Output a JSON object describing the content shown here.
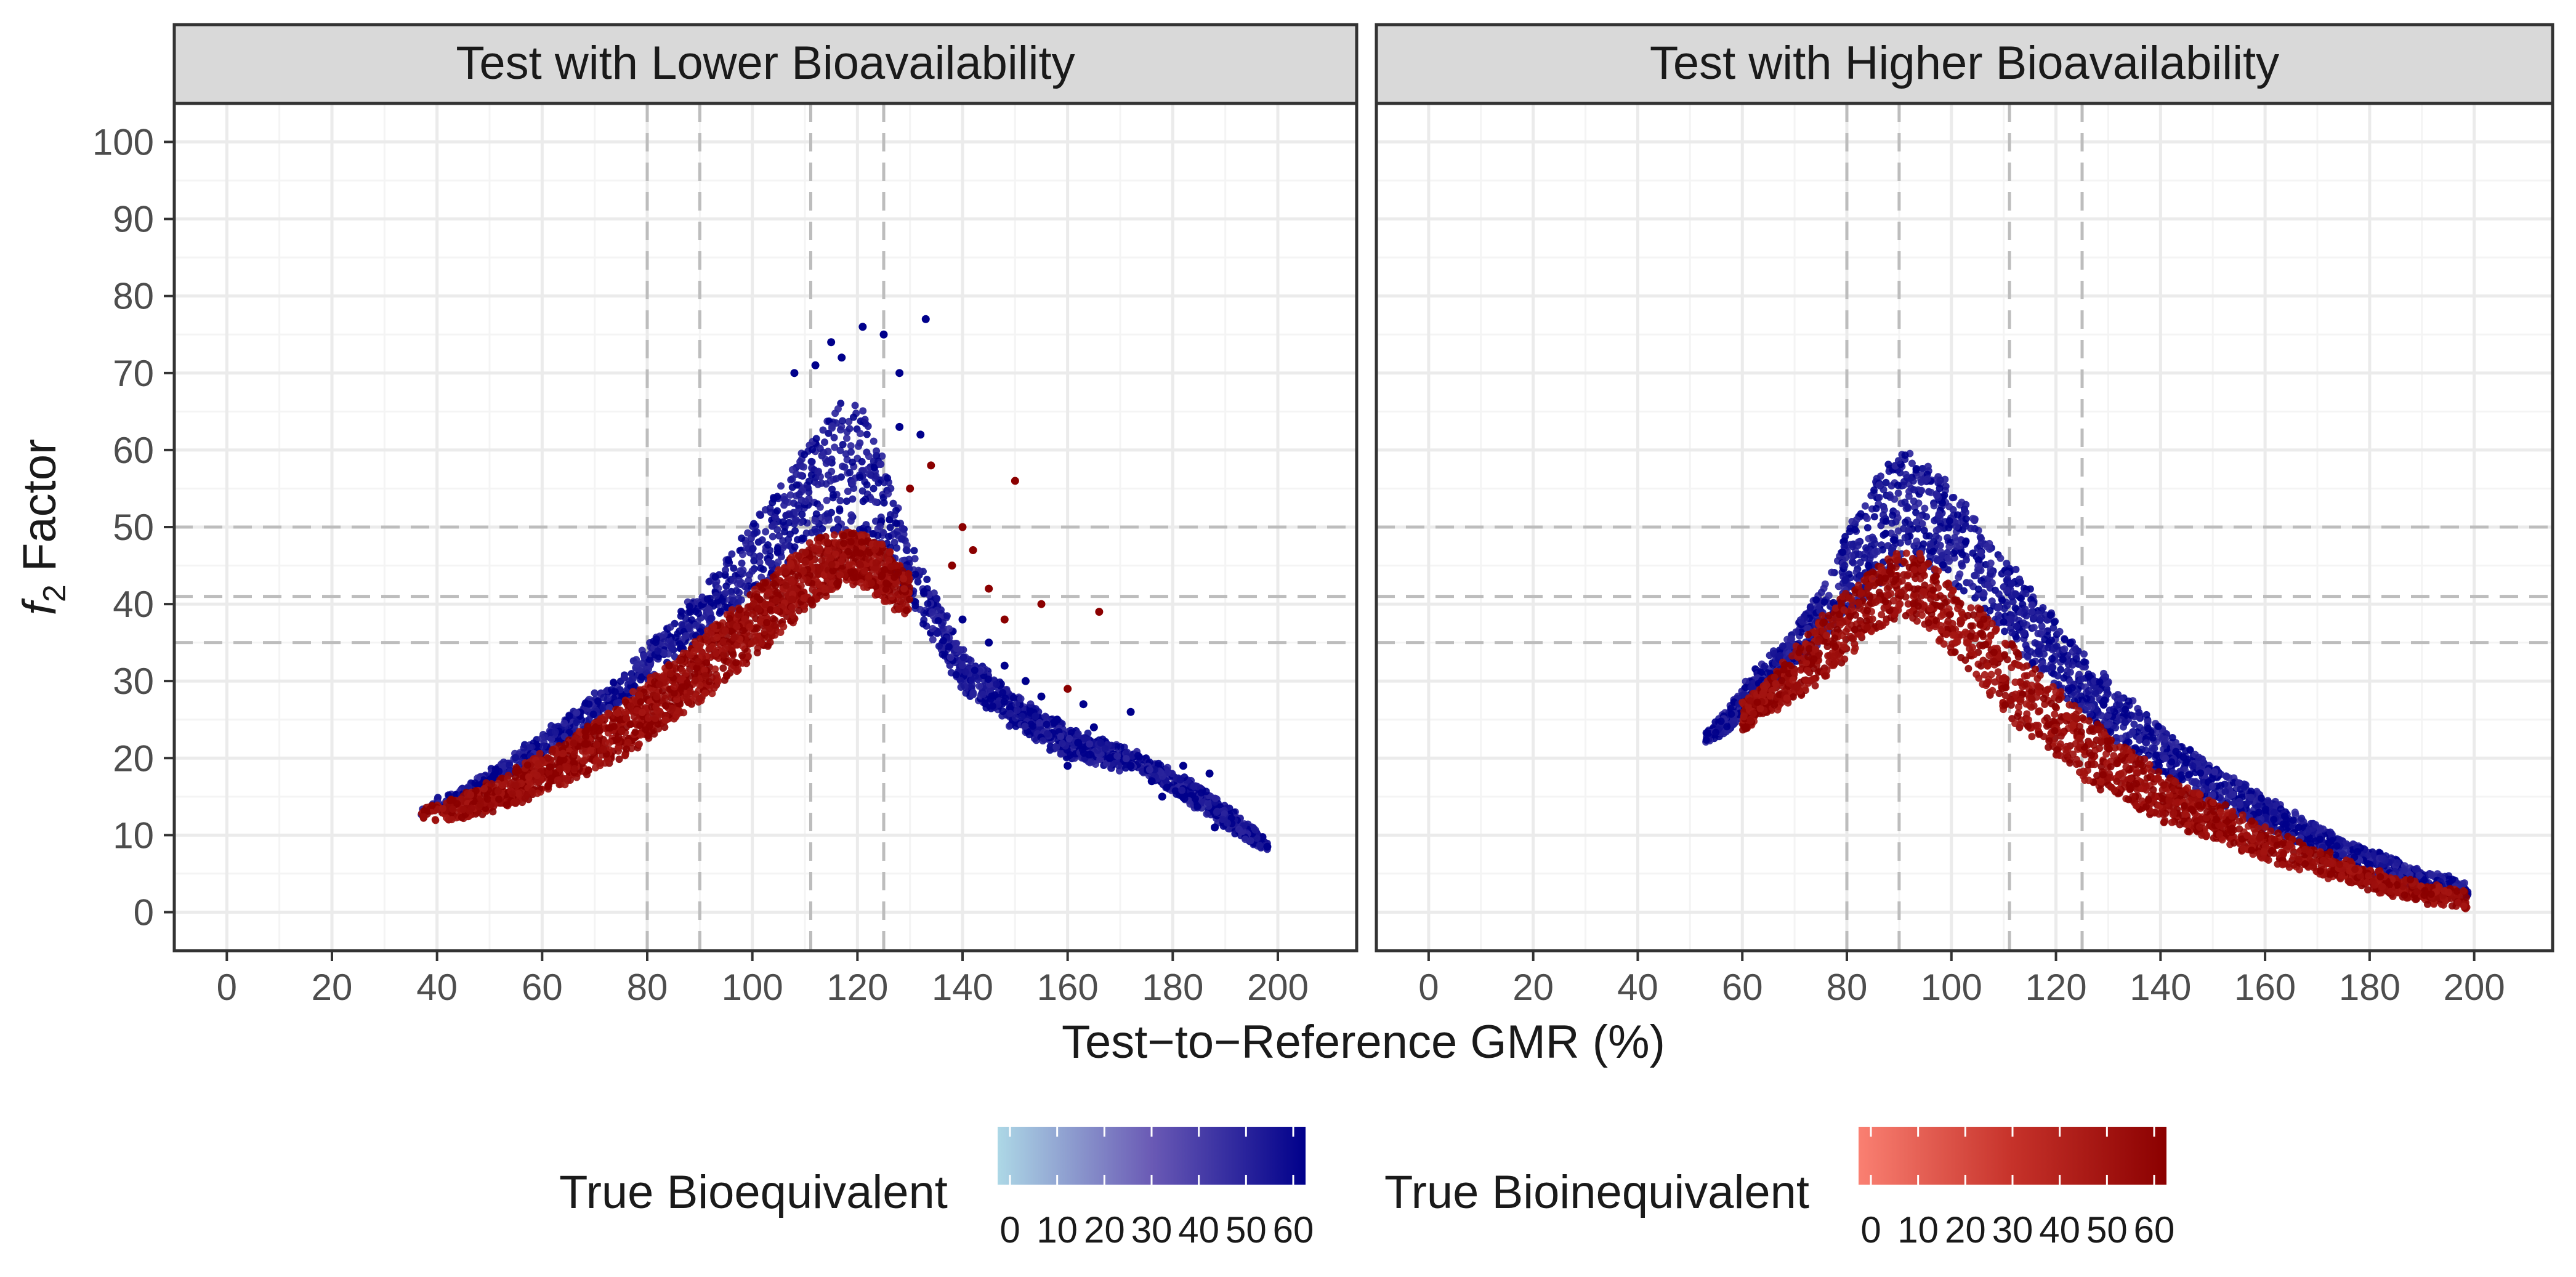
{
  "chart_data": {
    "type": "scatter",
    "facet_layout": "1x2 facets, shared y axis",
    "xlabel": "Test−to−Reference GMR (%)",
    "ylabel": "f2 Factor",
    "ylabel_parts": {
      "f": "f",
      "subscript": "2",
      "rest": " Factor"
    },
    "xlim": [
      -10,
      215
    ],
    "ylim": [
      -5,
      105
    ],
    "x_ticks": [
      0,
      20,
      40,
      60,
      80,
      100,
      120,
      140,
      160,
      180,
      200
    ],
    "y_ticks": [
      0,
      10,
      20,
      30,
      40,
      50,
      60,
      70,
      80,
      90,
      100
    ],
    "x_tick_labels": [
      "0",
      "20",
      "40",
      "60",
      "80",
      "100",
      "120",
      "140",
      "160",
      "180",
      "200"
    ],
    "y_tick_labels": [
      "0",
      "10",
      "20",
      "30",
      "40",
      "50",
      "60",
      "70",
      "80",
      "90",
      "100"
    ],
    "grid": true,
    "vertical_reference_lines": [
      80,
      90,
      111.11,
      125
    ],
    "horizontal_reference_lines": [
      35,
      41,
      50
    ],
    "panels": [
      {
        "title": "Test with Lower Bioavailability",
        "series": [
          {
            "name": "True Bioequivalent",
            "color_scale": "blue",
            "envelope_upper": [
              [
                37,
                13.5
              ],
              [
                45,
                16
              ],
              [
                55,
                20.5
              ],
              [
                65,
                25.5
              ],
              [
                75,
                31
              ],
              [
                85,
                38
              ],
              [
                95,
                45.5
              ],
              [
                105,
                55
              ],
              [
                112,
                62
              ],
              [
                118,
                67
              ],
              [
                122,
                65
              ],
              [
                126,
                56
              ],
              [
                130,
                48
              ],
              [
                140,
                34
              ],
              [
                150,
                28
              ],
              [
                160,
                24
              ],
              [
                175,
                20
              ],
              [
                188,
                15
              ],
              [
                198,
                9
              ]
            ],
            "envelope_lower": [
              [
                37,
                13
              ],
              [
                45,
                15
              ],
              [
                55,
                18.5
              ],
              [
                65,
                22.5
              ],
              [
                75,
                27
              ],
              [
                85,
                32.5
              ],
              [
                95,
                38.5
              ],
              [
                105,
                44.5
              ],
              [
                112,
                48.5
              ],
              [
                118,
                49.5
              ],
              [
                122,
                49
              ],
              [
                126,
                45
              ],
              [
                130,
                40
              ],
              [
                140,
                29
              ],
              [
                150,
                24
              ],
              [
                160,
                20
              ],
              [
                175,
                18
              ],
              [
                188,
                12
              ],
              [
                198,
                8
              ]
            ],
            "outliers": [
              [
                115,
                74
              ],
              [
                121,
                76
              ],
              [
                125,
                75
              ],
              [
                133,
                77
              ],
              [
                117,
                72
              ],
              [
                128,
                70
              ],
              [
                108,
                70
              ],
              [
                112,
                71
              ],
              [
                128,
                63
              ],
              [
                132,
                62
              ],
              [
                140,
                38
              ],
              [
                145,
                35
              ],
              [
                148,
                32
              ],
              [
                152,
                30
              ],
              [
                155,
                28
              ],
              [
                158,
                25
              ],
              [
                162,
                22
              ],
              [
                165,
                24
              ],
              [
                168,
                20
              ],
              [
                172,
                19
              ],
              [
                176,
                17
              ],
              [
                182,
                19
              ],
              [
                187,
                18
              ],
              [
                188,
                11
              ],
              [
                198,
                8.5
              ],
              [
                163,
                27
              ],
              [
                172,
                26
              ],
              [
                160,
                19
              ],
              [
                178,
                15
              ]
            ]
          },
          {
            "name": "True Bioinequivalent",
            "color_scale": "red",
            "envelope_upper": [
              [
                37,
                13.5
              ],
              [
                45,
                15
              ],
              [
                55,
                18.5
              ],
              [
                65,
                22.5
              ],
              [
                75,
                27
              ],
              [
                85,
                32.5
              ],
              [
                95,
                38.5
              ],
              [
                105,
                44.5
              ],
              [
                112,
                48.5
              ],
              [
                118,
                49.5
              ],
              [
                122,
                49
              ],
              [
                126,
                47
              ],
              [
                130,
                44
              ]
            ],
            "envelope_lower": [
              [
                37,
                12.5
              ],
              [
                42,
                11.8
              ],
              [
                55,
                14
              ],
              [
                65,
                17
              ],
              [
                75,
                20
              ],
              [
                85,
                25
              ],
              [
                95,
                30
              ],
              [
                105,
                36
              ],
              [
                112,
                40.5
              ],
              [
                118,
                43
              ],
              [
                122,
                42
              ],
              [
                126,
                40
              ],
              [
                130,
                38
              ]
            ],
            "outliers": [
              [
                150,
                56
              ],
              [
                166,
                39
              ],
              [
                134,
                58
              ],
              [
                140,
                50
              ],
              [
                145,
                42
              ],
              [
                130,
                55
              ],
              [
                148,
                38
              ],
              [
                155,
                40
              ],
              [
                138,
                45
              ],
              [
                160,
                29
              ],
              [
                142,
                47
              ]
            ]
          }
        ]
      },
      {
        "title": "Test with Higher Bioavailability",
        "series": [
          {
            "name": "True Bioequivalent",
            "color_scale": "blue",
            "envelope_upper": [
              [
                53,
                23
              ],
              [
                58,
                27
              ],
              [
                62,
                31
              ],
              [
                68,
                35
              ],
              [
                75,
                42
              ],
              [
                82,
                52
              ],
              [
                88,
                59
              ],
              [
                92,
                60.5
              ],
              [
                96,
                58
              ],
              [
                102,
                54
              ],
              [
                110,
                46
              ],
              [
                120,
                38
              ],
              [
                130,
                30
              ],
              [
                140,
                24
              ],
              [
                150,
                19
              ],
              [
                160,
                15
              ],
              [
                170,
                11
              ],
              [
                180,
                8
              ],
              [
                190,
                5.5
              ],
              [
                199,
                3.5
              ]
            ],
            "envelope_lower": [
              [
                53,
                22
              ],
              [
                58,
                24
              ],
              [
                62,
                26
              ],
              [
                68,
                31
              ],
              [
                75,
                35
              ],
              [
                82,
                40
              ],
              [
                88,
                44
              ],
              [
                92,
                46
              ],
              [
                96,
                45
              ],
              [
                102,
                42
              ],
              [
                110,
                36
              ],
              [
                120,
                29
              ],
              [
                130,
                23
              ],
              [
                140,
                18
              ],
              [
                150,
                14.5
              ],
              [
                160,
                11
              ],
              [
                170,
                8
              ],
              [
                180,
                5.5
              ],
              [
                190,
                3
              ],
              [
                199,
                2
              ]
            ]
          },
          {
            "name": "True Bioinequivalent",
            "color_scale": "red",
            "envelope_upper": [
              [
                60,
                27
              ],
              [
                65,
                30
              ],
              [
                72,
                36
              ],
              [
                78,
                40
              ],
              [
                84,
                44
              ],
              [
                90,
                47
              ],
              [
                94,
                46.5
              ],
              [
                98,
                44
              ],
              [
                104,
                41
              ],
              [
                110,
                36
              ],
              [
                120,
                29
              ],
              [
                130,
                23
              ],
              [
                140,
                18
              ],
              [
                150,
                14.5
              ],
              [
                160,
                11
              ],
              [
                170,
                8
              ],
              [
                180,
                5.5
              ],
              [
                190,
                3.5
              ],
              [
                199,
                2.5
              ]
            ],
            "envelope_lower": [
              [
                60,
                23.5
              ],
              [
                65,
                26
              ],
              [
                72,
                28
              ],
              [
                78,
                32
              ],
              [
                84,
                36
              ],
              [
                90,
                38.5
              ],
              [
                94,
                38
              ],
              [
                98,
                35
              ],
              [
                104,
                31
              ],
              [
                110,
                26
              ],
              [
                120,
                20
              ],
              [
                130,
                15.5
              ],
              [
                140,
                12
              ],
              [
                150,
                9.5
              ],
              [
                160,
                7
              ],
              [
                170,
                5
              ],
              [
                180,
                3
              ],
              [
                190,
                1.5
              ],
              [
                199,
                0.5
              ]
            ]
          }
        ]
      }
    ],
    "legend": {
      "position": "bottom",
      "items": [
        {
          "title": "True Bioequivalent",
          "low_color": "#add8e6",
          "mid_color": "#6a5ab5",
          "high_color": "#00008b",
          "range": [
            0,
            60
          ],
          "tick_labels": [
            "0",
            "10",
            "20",
            "30",
            "40",
            "50",
            "60"
          ]
        },
        {
          "title": "True Bioinequivalent",
          "low_color": "#fa8072",
          "mid_color": "#c6322a",
          "high_color": "#8b0000",
          "range": [
            0,
            60
          ],
          "tick_labels": [
            "0",
            "10",
            "20",
            "30",
            "40",
            "50",
            "60"
          ]
        }
      ]
    }
  },
  "colors": {
    "panel_border": "#333333",
    "strip_fill": "#d9d9d9",
    "grid_major": "#ebebeb",
    "grid_minor": "#f4f4f4",
    "ref_line": "#bdbdbd"
  }
}
